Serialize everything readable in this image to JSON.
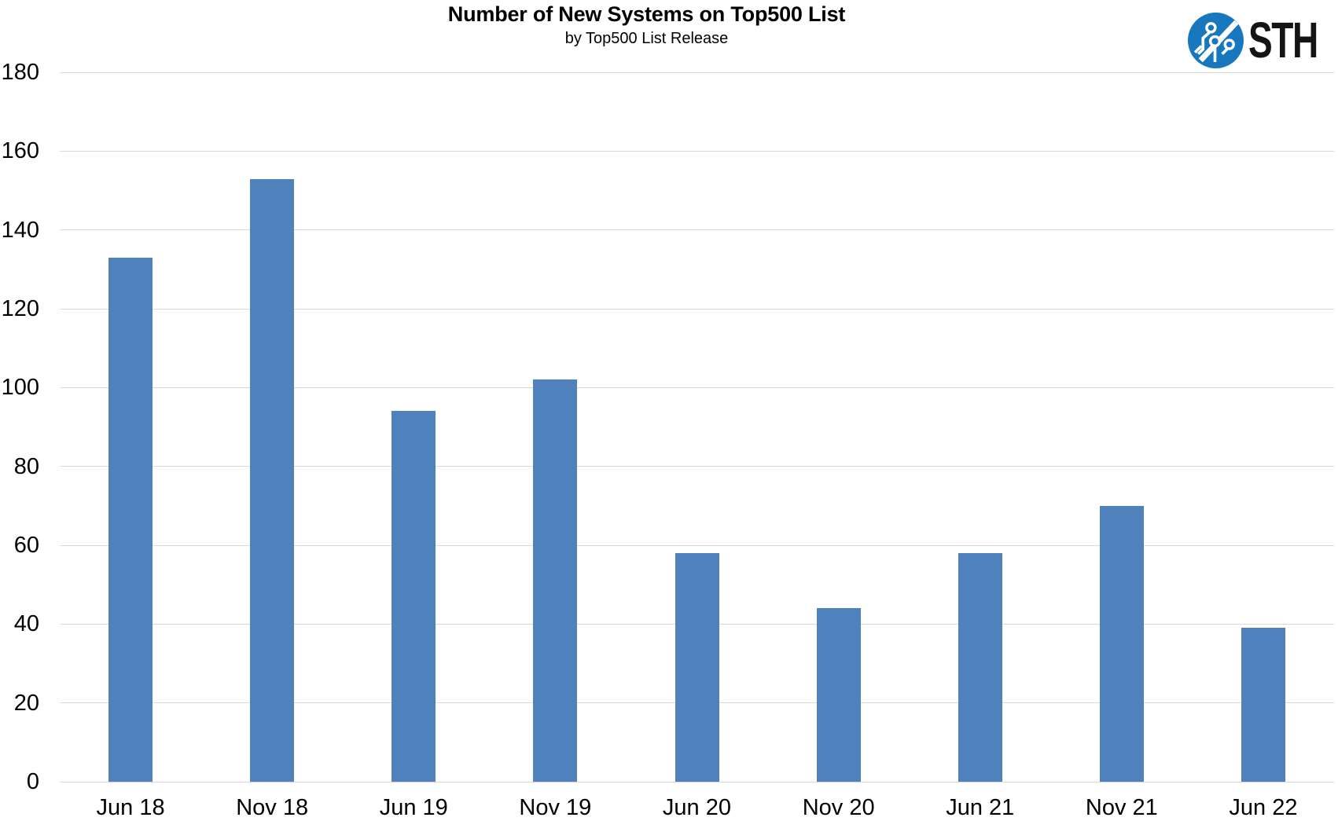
{
  "logo": {
    "text": "STH",
    "circle_color": "#1878be",
    "trace_color": "#ffffff",
    "text_color": "#141414"
  },
  "chart_data": {
    "type": "bar",
    "title": "Number of New Systems on Top500 List",
    "subtitle": "by Top500 List Release",
    "categories": [
      "Jun 18",
      "Nov 18",
      "Jun 19",
      "Nov 19",
      "Jun 20",
      "Nov 20",
      "Jun 21",
      "Nov 21",
      "Jun 22"
    ],
    "values": [
      133,
      153,
      94,
      102,
      58,
      44,
      58,
      70,
      39
    ],
    "xlabel": "",
    "ylabel": "",
    "ylim": [
      0,
      180
    ],
    "yticks": [
      0,
      20,
      40,
      60,
      80,
      100,
      120,
      140,
      160,
      180
    ],
    "grid": true,
    "legend": "none",
    "bar_color": "#4f81bd",
    "gridline_color": "#d9d9d9",
    "axis_text_color": "#000000"
  }
}
